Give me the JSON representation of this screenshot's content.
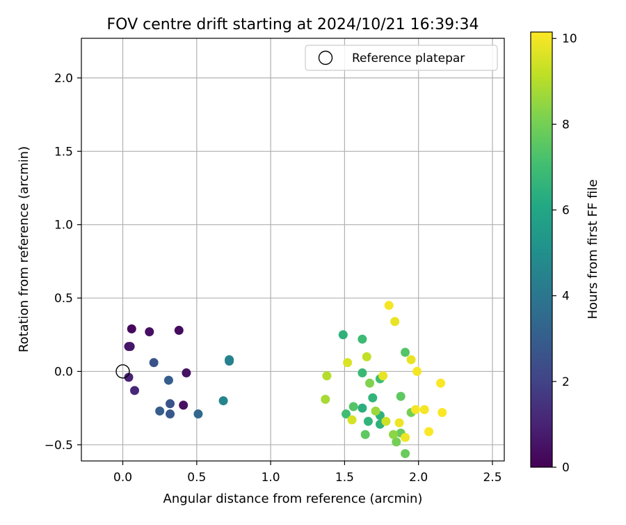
{
  "chart_data": {
    "type": "scatter",
    "title": "FOV centre drift starting at 2024/10/21 16:39:34",
    "xlabel": "Angular distance from reference (arcmin)",
    "ylabel": "Rotation from reference (arcmin)",
    "xlim": [
      -0.28,
      2.58
    ],
    "ylim": [
      -0.61,
      2.27
    ],
    "xticks": [
      0.0,
      0.5,
      1.0,
      1.5,
      2.0,
      2.5
    ],
    "xtick_labels": [
      "0.0",
      "0.5",
      "1.0",
      "1.5",
      "2.0",
      "2.5"
    ],
    "yticks": [
      -0.5,
      0.0,
      0.5,
      1.0,
      1.5,
      2.0
    ],
    "ytick_labels": [
      "−0.5",
      "0.0",
      "0.5",
      "1.0",
      "1.5",
      "2.0"
    ],
    "grid": true,
    "legend": {
      "placement": "top-right",
      "entries": [
        {
          "label": "Reference platepar",
          "marker": "open-circle"
        }
      ]
    },
    "reference_point": {
      "x": 0.0,
      "y": 0.0
    },
    "colorbar": {
      "label": "Hours from first FF file",
      "colormap": "viridis",
      "range": [
        0,
        10.15
      ],
      "ticks": [
        0,
        2,
        4,
        6,
        8,
        10
      ],
      "tick_labels": [
        "0",
        "2",
        "4",
        "6",
        "8",
        "10"
      ]
    },
    "points": [
      {
        "x": 0.06,
        "y": 0.29,
        "t": 0.2
      },
      {
        "x": 0.18,
        "y": 0.27,
        "t": 0.4
      },
      {
        "x": 0.38,
        "y": 0.28,
        "t": 0.3
      },
      {
        "x": 0.04,
        "y": 0.17,
        "t": 0.5
      },
      {
        "x": 0.05,
        "y": 0.17,
        "t": 0.6
      },
      {
        "x": 0.43,
        "y": -0.01,
        "t": 0.5
      },
      {
        "x": 0.04,
        "y": -0.04,
        "t": 1.0
      },
      {
        "x": 0.08,
        "y": -0.13,
        "t": 1.1
      },
      {
        "x": 0.41,
        "y": -0.23,
        "t": 0.4
      },
      {
        "x": 0.21,
        "y": 0.06,
        "t": 2.6
      },
      {
        "x": 0.31,
        "y": -0.06,
        "t": 3.0
      },
      {
        "x": 0.32,
        "y": -0.22,
        "t": 2.6
      },
      {
        "x": 0.25,
        "y": -0.27,
        "t": 3.0
      },
      {
        "x": 0.32,
        "y": -0.29,
        "t": 2.8
      },
      {
        "x": 0.51,
        "y": -0.29,
        "t": 3.4
      },
      {
        "x": 0.72,
        "y": 0.08,
        "t": 4.6
      },
      {
        "x": 0.72,
        "y": 0.07,
        "t": 4.4
      },
      {
        "x": 0.68,
        "y": -0.2,
        "t": 4.6
      },
      {
        "x": 1.49,
        "y": 0.25,
        "t": 6.5
      },
      {
        "x": 1.62,
        "y": 0.22,
        "t": 6.9
      },
      {
        "x": 1.62,
        "y": -0.01,
        "t": 6.8
      },
      {
        "x": 1.62,
        "y": -0.25,
        "t": 6.4
      },
      {
        "x": 1.69,
        "y": -0.18,
        "t": 6.6
      },
      {
        "x": 1.74,
        "y": -0.3,
        "t": 6.5
      },
      {
        "x": 1.66,
        "y": -0.34,
        "t": 6.6
      },
      {
        "x": 1.74,
        "y": -0.36,
        "t": 6.5
      },
      {
        "x": 1.74,
        "y": -0.05,
        "t": 7.0
      },
      {
        "x": 1.51,
        "y": -0.29,
        "t": 7.0
      },
      {
        "x": 1.56,
        "y": -0.24,
        "t": 7.4
      },
      {
        "x": 1.64,
        "y": -0.43,
        "t": 7.6
      },
      {
        "x": 1.91,
        "y": 0.13,
        "t": 7.4
      },
      {
        "x": 1.88,
        "y": -0.17,
        "t": 7.6
      },
      {
        "x": 1.85,
        "y": -0.48,
        "t": 8.0
      },
      {
        "x": 1.88,
        "y": -0.42,
        "t": 7.8
      },
      {
        "x": 1.91,
        "y": -0.56,
        "t": 7.8
      },
      {
        "x": 1.95,
        "y": -0.28,
        "t": 8.0
      },
      {
        "x": 1.67,
        "y": -0.08,
        "t": 8.2
      },
      {
        "x": 1.83,
        "y": -0.43,
        "t": 8.4
      },
      {
        "x": 1.71,
        "y": -0.27,
        "t": 8.6
      },
      {
        "x": 1.37,
        "y": -0.19,
        "t": 8.8
      },
      {
        "x": 1.38,
        "y": -0.03,
        "t": 9.0
      },
      {
        "x": 1.65,
        "y": 0.1,
        "t": 9.2
      },
      {
        "x": 1.52,
        "y": 0.06,
        "t": 9.6
      },
      {
        "x": 1.55,
        "y": -0.33,
        "t": 9.5
      },
      {
        "x": 1.78,
        "y": -0.34,
        "t": 9.4
      },
      {
        "x": 1.76,
        "y": -0.03,
        "t": 9.8
      },
      {
        "x": 1.84,
        "y": 0.34,
        "t": 9.8
      },
      {
        "x": 1.8,
        "y": 0.45,
        "t": 10.0
      },
      {
        "x": 1.95,
        "y": 0.08,
        "t": 9.8
      },
      {
        "x": 1.99,
        "y": 0.0,
        "t": 10.0
      },
      {
        "x": 1.87,
        "y": -0.35,
        "t": 9.9
      },
      {
        "x": 1.91,
        "y": -0.45,
        "t": 9.9
      },
      {
        "x": 1.98,
        "y": -0.26,
        "t": 10.0
      },
      {
        "x": 2.04,
        "y": -0.26,
        "t": 10.0
      },
      {
        "x": 2.07,
        "y": -0.41,
        "t": 10.1
      },
      {
        "x": 2.15,
        "y": -0.08,
        "t": 10.1
      },
      {
        "x": 2.16,
        "y": -0.28,
        "t": 10.1
      }
    ]
  }
}
